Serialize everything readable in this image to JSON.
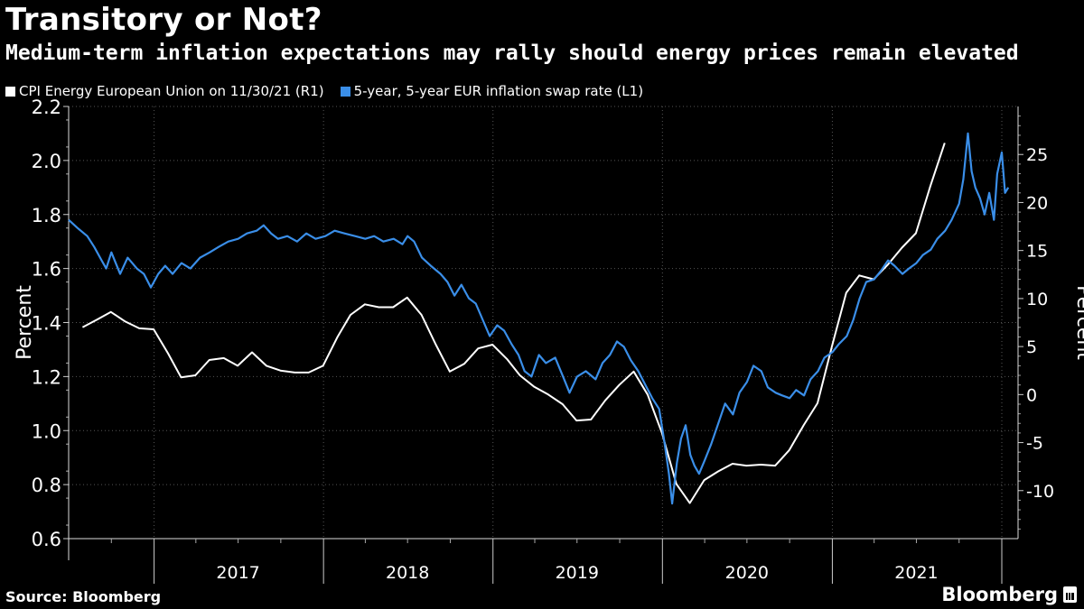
{
  "header": {
    "title": "Transitory or Not?",
    "subtitle": "Medium-term inflation expectations may rally should energy prices remain elevated"
  },
  "footer": {
    "source": "Source: Bloomberg",
    "brand": "Bloomberg"
  },
  "chart_data": {
    "type": "line",
    "ylabel_left": "Percent",
    "ylabel_right": "Percent",
    "ylim_left": [
      0.6,
      2.2
    ],
    "ylim_right": [
      -15,
      30
    ],
    "yticks_left": [
      "0.6",
      "0.8",
      "1.0",
      "1.2",
      "1.4",
      "1.6",
      "1.8",
      "2.0",
      "2.2"
    ],
    "yticks_right": [
      "-10",
      "-5",
      "0",
      "5",
      "10",
      "15",
      "20",
      "25"
    ],
    "x_labels": [
      "2017",
      "2018",
      "2019",
      "2020",
      "2021"
    ],
    "grid": true,
    "legend_position": "top-left",
    "colors": {
      "background": "#000000",
      "energy": "#ffffff",
      "swap": "#3a8ee8",
      "grid": "#555555"
    },
    "series": [
      {
        "name": "CPI Energy European Union on 11/30/21 (R1)",
        "axis": "right",
        "color": "#ffffff",
        "points": [
          [
            "2016-07-31",
            7.0
          ],
          [
            "2016-08-31",
            7.8
          ],
          [
            "2016-09-30",
            8.6
          ],
          [
            "2016-10-31",
            7.6
          ],
          [
            "2016-11-30",
            6.9
          ],
          [
            "2016-12-31",
            6.8
          ],
          [
            "2017-01-31",
            4.3
          ],
          [
            "2017-02-28",
            1.8
          ],
          [
            "2017-03-31",
            2.0
          ],
          [
            "2017-04-30",
            3.6
          ],
          [
            "2017-05-31",
            3.8
          ],
          [
            "2017-06-30",
            3.0
          ],
          [
            "2017-07-31",
            4.4
          ],
          [
            "2017-08-31",
            3.0
          ],
          [
            "2017-09-30",
            2.5
          ],
          [
            "2017-10-31",
            2.3
          ],
          [
            "2017-11-30",
            2.3
          ],
          [
            "2017-12-31",
            3.0
          ],
          [
            "2018-01-31",
            6.0
          ],
          [
            "2018-02-28",
            8.3
          ],
          [
            "2018-03-31",
            9.4
          ],
          [
            "2018-04-30",
            9.1
          ],
          [
            "2018-05-31",
            9.1
          ],
          [
            "2018-06-30",
            10.1
          ],
          [
            "2018-07-31",
            8.3
          ],
          [
            "2018-08-31",
            5.2
          ],
          [
            "2018-09-30",
            2.4
          ],
          [
            "2018-10-31",
            3.2
          ],
          [
            "2018-11-30",
            4.8
          ],
          [
            "2018-12-31",
            5.2
          ],
          [
            "2019-01-31",
            3.7
          ],
          [
            "2019-02-28",
            2.0
          ],
          [
            "2019-03-31",
            0.8
          ],
          [
            "2019-04-30",
            0.0
          ],
          [
            "2019-05-31",
            -1.0
          ],
          [
            "2019-06-30",
            -2.7
          ],
          [
            "2019-07-31",
            -2.6
          ],
          [
            "2019-08-31",
            -0.6
          ],
          [
            "2019-09-30",
            1.0
          ],
          [
            "2019-10-31",
            2.4
          ],
          [
            "2019-11-30",
            0.0
          ],
          [
            "2019-12-31",
            -4.0
          ],
          [
            "2020-01-31",
            -9.3
          ],
          [
            "2020-02-29",
            -11.3
          ],
          [
            "2020-03-31",
            -8.9
          ],
          [
            "2020-04-30",
            -8.0
          ],
          [
            "2020-05-31",
            -7.2
          ],
          [
            "2020-06-30",
            -7.4
          ],
          [
            "2020-07-31",
            -7.3
          ],
          [
            "2020-08-31",
            -7.4
          ],
          [
            "2020-09-30",
            -5.8
          ],
          [
            "2020-10-31",
            -3.2
          ],
          [
            "2020-11-30",
            -0.9
          ],
          [
            "2020-12-31",
            5.0
          ],
          [
            "2021-01-31",
            10.6
          ],
          [
            "2021-02-28",
            12.4
          ],
          [
            "2021-03-31",
            12.0
          ],
          [
            "2021-04-30",
            13.5
          ],
          [
            "2021-05-31",
            15.3
          ],
          [
            "2021-06-30",
            16.8
          ],
          [
            "2021-07-31",
            21.7
          ],
          [
            "2021-08-31",
            26.2
          ]
        ]
      },
      {
        "name": "5-year, 5-year EUR inflation swap rate (L1)",
        "axis": "left",
        "color": "#3a8ee8",
        "points": [
          [
            "2016-07-01",
            1.78
          ],
          [
            "2016-07-20",
            1.75
          ],
          [
            "2016-08-10",
            1.72
          ],
          [
            "2016-08-25",
            1.68
          ],
          [
            "2016-09-10",
            1.63
          ],
          [
            "2016-09-20",
            1.6
          ],
          [
            "2016-10-01",
            1.66
          ],
          [
            "2016-10-20",
            1.58
          ],
          [
            "2016-11-05",
            1.64
          ],
          [
            "2016-11-25",
            1.6
          ],
          [
            "2016-12-10",
            1.58
          ],
          [
            "2016-12-25",
            1.53
          ],
          [
            "2017-01-10",
            1.58
          ],
          [
            "2017-01-25",
            1.61
          ],
          [
            "2017-02-10",
            1.58
          ],
          [
            "2017-03-01",
            1.62
          ],
          [
            "2017-03-20",
            1.6
          ],
          [
            "2017-04-10",
            1.64
          ],
          [
            "2017-05-01",
            1.66
          ],
          [
            "2017-05-20",
            1.68
          ],
          [
            "2017-06-10",
            1.7
          ],
          [
            "2017-07-01",
            1.71
          ],
          [
            "2017-07-20",
            1.73
          ],
          [
            "2017-08-10",
            1.74
          ],
          [
            "2017-08-25",
            1.76
          ],
          [
            "2017-09-10",
            1.73
          ],
          [
            "2017-09-25",
            1.71
          ],
          [
            "2017-10-15",
            1.72
          ],
          [
            "2017-11-05",
            1.7
          ],
          [
            "2017-11-25",
            1.73
          ],
          [
            "2017-12-15",
            1.71
          ],
          [
            "2018-01-05",
            1.72
          ],
          [
            "2018-01-25",
            1.74
          ],
          [
            "2018-02-15",
            1.73
          ],
          [
            "2018-03-10",
            1.72
          ],
          [
            "2018-04-01",
            1.71
          ],
          [
            "2018-04-20",
            1.72
          ],
          [
            "2018-05-10",
            1.7
          ],
          [
            "2018-06-01",
            1.71
          ],
          [
            "2018-06-20",
            1.69
          ],
          [
            "2018-07-01",
            1.72
          ],
          [
            "2018-07-15",
            1.7
          ],
          [
            "2018-08-01",
            1.64
          ],
          [
            "2018-08-20",
            1.61
          ],
          [
            "2018-09-10",
            1.58
          ],
          [
            "2018-09-25",
            1.55
          ],
          [
            "2018-10-10",
            1.5
          ],
          [
            "2018-10-25",
            1.54
          ],
          [
            "2018-11-10",
            1.49
          ],
          [
            "2018-11-25",
            1.47
          ],
          [
            "2018-12-10",
            1.41
          ],
          [
            "2018-12-25",
            1.35
          ],
          [
            "2019-01-10",
            1.39
          ],
          [
            "2019-01-25",
            1.37
          ],
          [
            "2019-02-10",
            1.32
          ],
          [
            "2019-02-25",
            1.28
          ],
          [
            "2019-03-10",
            1.22
          ],
          [
            "2019-03-25",
            1.2
          ],
          [
            "2019-04-10",
            1.28
          ],
          [
            "2019-04-25",
            1.25
          ],
          [
            "2019-05-15",
            1.27
          ],
          [
            "2019-06-01",
            1.2
          ],
          [
            "2019-06-15",
            1.14
          ],
          [
            "2019-07-01",
            1.2
          ],
          [
            "2019-07-20",
            1.22
          ],
          [
            "2019-08-10",
            1.19
          ],
          [
            "2019-08-25",
            1.25
          ],
          [
            "2019-09-10",
            1.28
          ],
          [
            "2019-09-25",
            1.33
          ],
          [
            "2019-10-10",
            1.31
          ],
          [
            "2019-10-25",
            1.26
          ],
          [
            "2019-11-10",
            1.22
          ],
          [
            "2019-11-25",
            1.17
          ],
          [
            "2019-12-10",
            1.12
          ],
          [
            "2019-12-25",
            1.08
          ],
          [
            "2020-01-05",
            0.96
          ],
          [
            "2020-01-15",
            0.84
          ],
          [
            "2020-01-22",
            0.73
          ],
          [
            "2020-02-01",
            0.88
          ],
          [
            "2020-02-10",
            0.97
          ],
          [
            "2020-02-20",
            1.02
          ],
          [
            "2020-03-01",
            0.91
          ],
          [
            "2020-03-10",
            0.87
          ],
          [
            "2020-03-20",
            0.84
          ],
          [
            "2020-04-01",
            0.89
          ],
          [
            "2020-04-15",
            0.95
          ],
          [
            "2020-05-01",
            1.03
          ],
          [
            "2020-05-15",
            1.1
          ],
          [
            "2020-06-01",
            1.06
          ],
          [
            "2020-06-15",
            1.14
          ],
          [
            "2020-07-01",
            1.18
          ],
          [
            "2020-07-15",
            1.24
          ],
          [
            "2020-08-01",
            1.22
          ],
          [
            "2020-08-15",
            1.16
          ],
          [
            "2020-09-01",
            1.14
          ],
          [
            "2020-09-15",
            1.13
          ],
          [
            "2020-10-01",
            1.12
          ],
          [
            "2020-10-15",
            1.15
          ],
          [
            "2020-11-01",
            1.13
          ],
          [
            "2020-11-15",
            1.19
          ],
          [
            "2020-12-01",
            1.22
          ],
          [
            "2020-12-15",
            1.27
          ],
          [
            "2021-01-01",
            1.29
          ],
          [
            "2021-01-15",
            1.32
          ],
          [
            "2021-02-01",
            1.35
          ],
          [
            "2021-02-15",
            1.41
          ],
          [
            "2021-03-01",
            1.49
          ],
          [
            "2021-03-15",
            1.55
          ],
          [
            "2021-04-01",
            1.56
          ],
          [
            "2021-04-15",
            1.59
          ],
          [
            "2021-05-01",
            1.63
          ],
          [
            "2021-05-15",
            1.61
          ],
          [
            "2021-06-01",
            1.58
          ],
          [
            "2021-06-15",
            1.6
          ],
          [
            "2021-07-01",
            1.62
          ],
          [
            "2021-07-15",
            1.65
          ],
          [
            "2021-08-01",
            1.67
          ],
          [
            "2021-08-15",
            1.71
          ],
          [
            "2021-09-01",
            1.74
          ],
          [
            "2021-09-15",
            1.78
          ],
          [
            "2021-10-01",
            1.84
          ],
          [
            "2021-10-10",
            1.93
          ],
          [
            "2021-10-20",
            2.1
          ],
          [
            "2021-10-28",
            1.96
          ],
          [
            "2021-11-05",
            1.9
          ],
          [
            "2021-11-15",
            1.86
          ],
          [
            "2021-11-25",
            1.8
          ],
          [
            "2021-12-05",
            1.88
          ],
          [
            "2021-12-15",
            1.78
          ],
          [
            "2021-12-22",
            1.95
          ],
          [
            "2022-01-01",
            2.03
          ],
          [
            "2022-01-08",
            1.88
          ],
          [
            "2022-01-15",
            1.9
          ]
        ]
      }
    ]
  }
}
